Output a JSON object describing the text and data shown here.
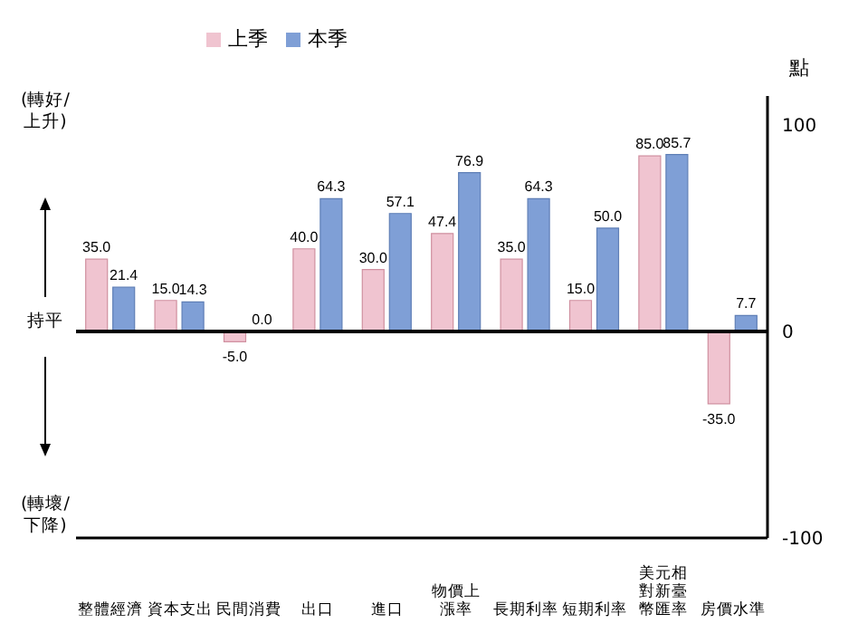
{
  "chart_data": {
    "type": "bar",
    "categories": [
      "整體經濟",
      "資本支出",
      "民間消費",
      "出口",
      "進口",
      "物價上漲率",
      "長期利率",
      "短期利率",
      "美元相對新臺幣匯率",
      "房價水準"
    ],
    "series": [
      {
        "name": "上季",
        "color": "#f0c4d0",
        "values": [
          35.0,
          15.0,
          -5.0,
          40.0,
          30.0,
          47.4,
          35.0,
          15.0,
          85.0,
          -35.0
        ],
        "value_labels": [
          "35.0",
          "15.0",
          "-5.0",
          "40.0",
          "30.0",
          "47.4",
          "35.0",
          "15.0",
          "85.0",
          "-35.0"
        ]
      },
      {
        "name": "本季",
        "color": "#7f9fd6",
        "values": [
          21.4,
          14.3,
          0.0,
          64.3,
          57.1,
          76.9,
          64.3,
          50.0,
          85.7,
          7.7
        ],
        "value_labels": [
          "21.4",
          "14.3",
          "0.0",
          "64.3",
          "57.1",
          "76.9",
          "64.3",
          "50.0",
          "85.7",
          "7.7"
        ]
      }
    ],
    "ylabel": "點",
    "ylim": [
      -100,
      114
    ],
    "yticks": [
      -100,
      0,
      100
    ],
    "legend": "top",
    "grid": false,
    "ref_lines": [
      {
        "axis": "y",
        "value": 0,
        "color": "#000000"
      }
    ],
    "annotations": [
      "(轉好/上升)",
      "持平",
      "(轉壞/下降)"
    ]
  }
}
